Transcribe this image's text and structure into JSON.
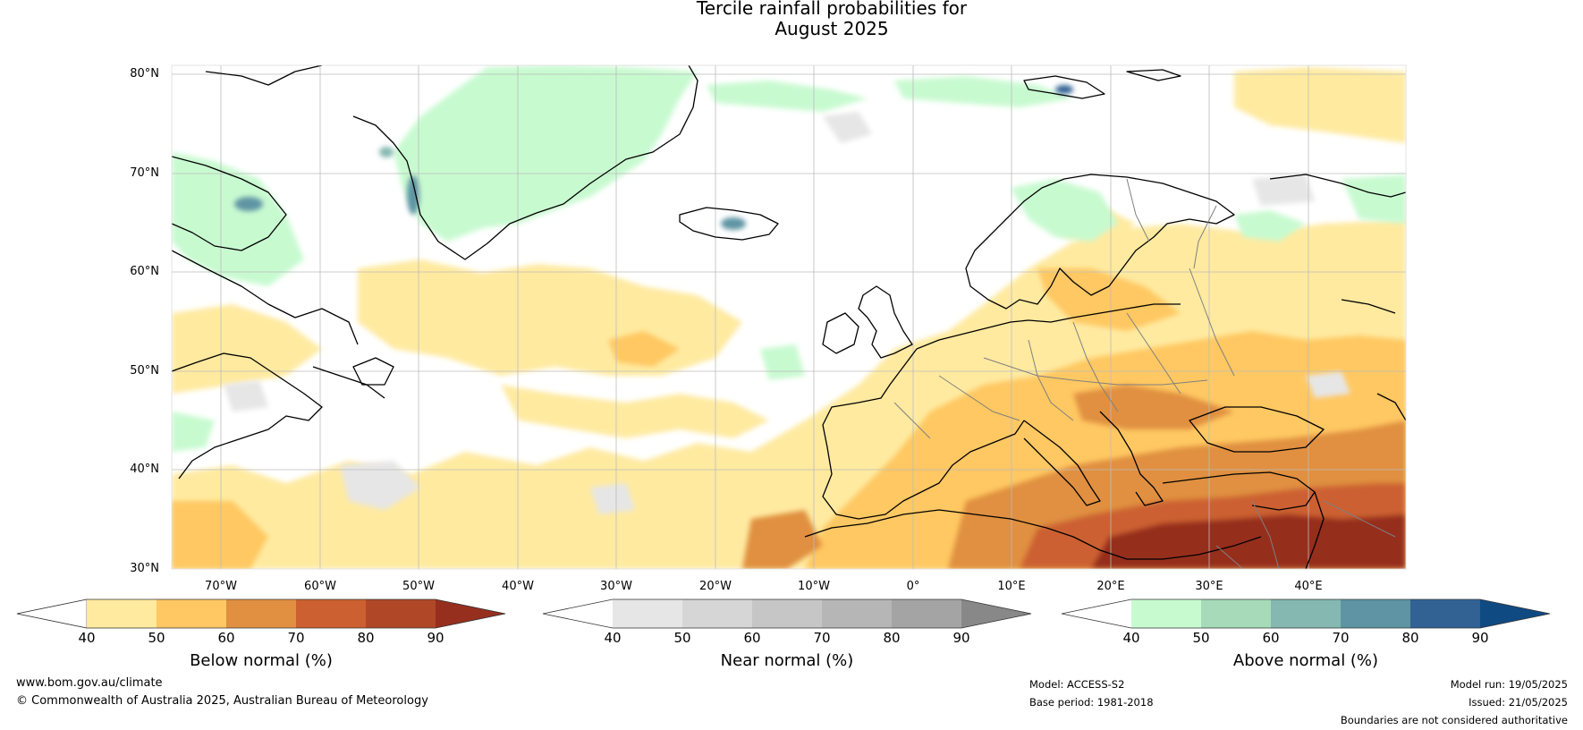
{
  "title_line1": "Tercile rainfall probabilities for",
  "title_line2": "August 2025",
  "lat_labels": [
    "80°N",
    "70°N",
    "60°N",
    "50°N",
    "40°N",
    "30°N"
  ],
  "lon_labels": [
    "70°W",
    "60°W",
    "50°W",
    "40°W",
    "30°W",
    "20°W",
    "10°W",
    "0°",
    "10°E",
    "20°E",
    "30°E",
    "40°E"
  ],
  "colorbars": [
    {
      "label": "Below normal (%)",
      "ticks": [
        "40",
        "50",
        "60",
        "70",
        "80",
        "90"
      ],
      "colors": [
        "#ffffff",
        "#ffeaa0",
        "#ffc862",
        "#e09040",
        "#cc6030",
        "#b04828",
        "#962f1e"
      ]
    },
    {
      "label": "Near normal (%)",
      "ticks": [
        "40",
        "50",
        "60",
        "70",
        "80",
        "90"
      ],
      "colors": [
        "#ffffff",
        "#e6e6e6",
        "#d6d6d6",
        "#c6c6c6",
        "#b6b6b6",
        "#a4a4a4",
        "#888888"
      ]
    },
    {
      "label": "Above normal (%)",
      "ticks": [
        "40",
        "50",
        "60",
        "70",
        "80",
        "90"
      ],
      "colors": [
        "#ffffff",
        "#c8fad0",
        "#a6dab8",
        "#84b8b0",
        "#5e94a4",
        "#326294",
        "#104a82"
      ]
    }
  ],
  "footer": {
    "website": "www.bom.gov.au/climate",
    "copyright": "© Commonwealth of Australia 2025, Australian Bureau of Meteorology",
    "model": "Model: ACCESS-S2",
    "base_period": "Base period: 1981-2018",
    "model_run": "Model run: 19/05/2025",
    "issued": "Issued: 21/05/2025",
    "disclaimer": "Boundaries are not considered authoritative"
  }
}
